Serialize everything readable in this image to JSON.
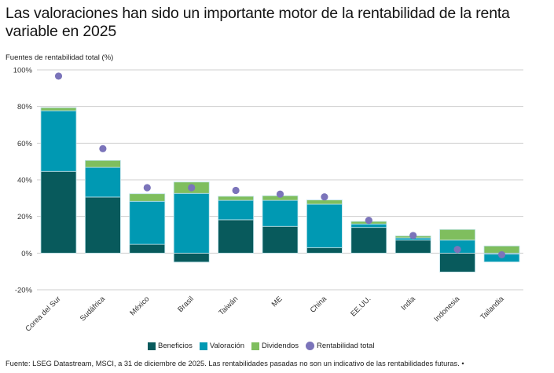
{
  "title": "Las valoraciones han sido un importante motor de la rentabilidad de la renta variable en 2025",
  "source": "Fuente: LSEG Datastream, MSCI, a 31 de diciembre de 2025. Las rentabilidades pasadas no son un indicativo de las rentabilidades futuras. •",
  "chart_data": {
    "type": "bar",
    "stacked": true,
    "title": "Las valoraciones han sido un importante motor de la rentabilidad de la renta variable en 2025",
    "ylabel": "Fuentes de rentabilidad total (%)",
    "xlabel": "",
    "ylim": [
      -20,
      100
    ],
    "yticks": [
      -20,
      0,
      20,
      40,
      60,
      80,
      100
    ],
    "ytick_labels": [
      "-20%",
      "0%",
      "20%",
      "40%",
      "60%",
      "80%",
      "100%"
    ],
    "grid": true,
    "legend_position": "bottom",
    "categories": [
      "Corea del Sur",
      "Sudáfrica",
      "México",
      "Brasil",
      "Taiwán",
      "ME",
      "China",
      "EE.UU.",
      "India",
      "Indonesia",
      "Tailandia"
    ],
    "series": [
      {
        "name": "Beneficios",
        "kind": "bar",
        "color": "#085A5C",
        "values": [
          44.6,
          30.6,
          4.8,
          -4.9,
          18.2,
          14.6,
          3.0,
          14.0,
          7.1,
          -10.3,
          -0.6
        ]
      },
      {
        "name": "Valoración",
        "kind": "bar",
        "color": "#0099B3",
        "values": [
          33.1,
          16.2,
          23.5,
          32.6,
          10.6,
          14.2,
          23.7,
          1.9,
          1.2,
          7.1,
          -4.2
        ]
      },
      {
        "name": "Dividendos",
        "kind": "bar",
        "color": "#7FBE5E",
        "values": [
          1.7,
          3.8,
          4.1,
          6.2,
          2.2,
          2.5,
          2.3,
          1.4,
          1.1,
          5.8,
          3.9
        ]
      },
      {
        "name": "Rentabilidad total",
        "kind": "point",
        "color": "#7B74BA",
        "values": [
          96.6,
          57.0,
          35.7,
          35.7,
          34.2,
          32.2,
          30.7,
          17.9,
          9.6,
          2.0,
          -0.9
        ]
      }
    ]
  }
}
